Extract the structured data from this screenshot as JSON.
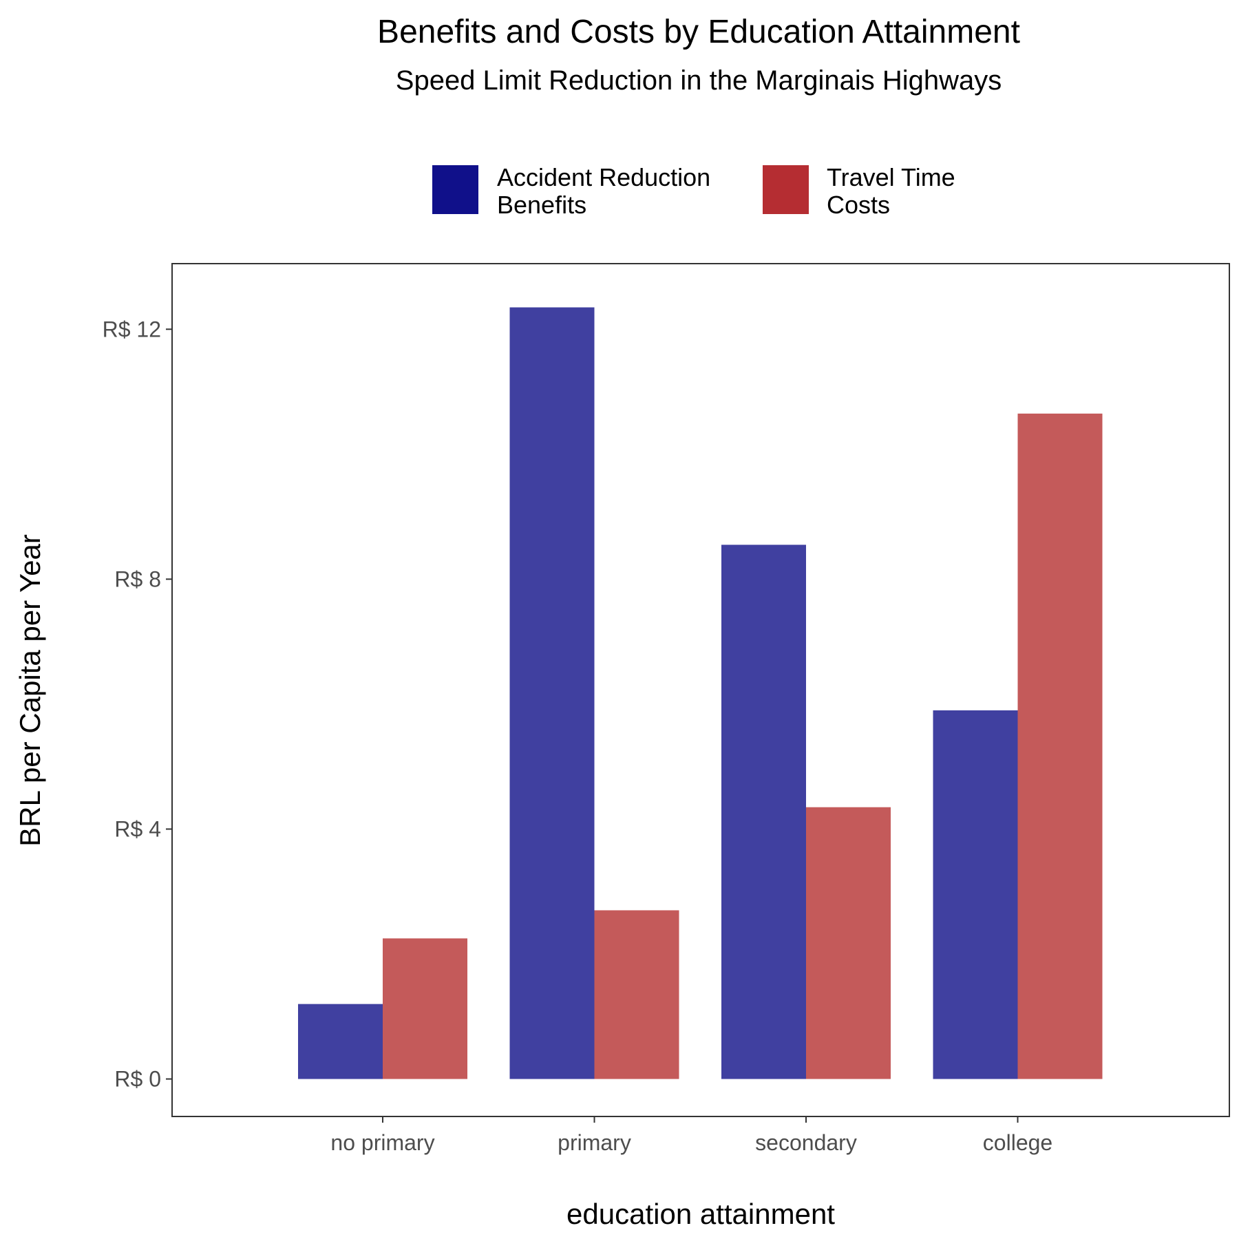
{
  "chart_data": {
    "type": "bar",
    "title": "Benefits and Costs by Education Attainment",
    "subtitle": "Speed Limit Reduction in the Marginais Highways",
    "xlabel": "education attainment",
    "ylabel": "BRL per Capita per Year",
    "categories": [
      "no primary",
      "primary",
      "secondary",
      "college"
    ],
    "series": [
      {
        "name_lines": [
          "Accident Reduction",
          "Benefits"
        ],
        "values": [
          1.2,
          12.35,
          8.55,
          5.9
        ],
        "color": "#4040a0",
        "legend_color": "#10108a"
      },
      {
        "name_lines": [
          "Travel Time",
          "Costs"
        ],
        "values": [
          2.25,
          2.7,
          4.35,
          10.65
        ],
        "color": "#c45a5a",
        "legend_color": "#b52d32"
      }
    ],
    "yticks": [
      0,
      4,
      8,
      12
    ],
    "ytick_labels": [
      "R$ 0",
      "R$ 4",
      "R$ 8",
      "R$ 12"
    ],
    "ylim": [
      -0.6,
      13.05
    ],
    "grid": false,
    "legend_position": "top"
  }
}
